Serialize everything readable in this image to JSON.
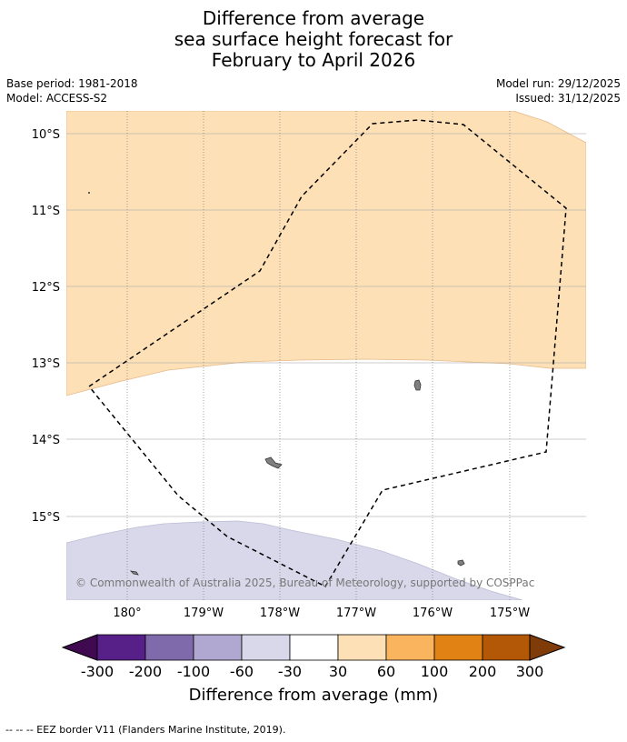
{
  "title": {
    "line1": "Difference from average",
    "line2": "sea surface height forecast for",
    "line3": "February to April 2026"
  },
  "meta": {
    "base_period": "Base period: 1981-2018",
    "model": "Model: ACCESS-S2",
    "model_run": "Model run: 29/12/2025",
    "issued": "Issued: 31/12/2025"
  },
  "map": {
    "lat_ticks": [
      "10°S",
      "11°S",
      "12°S",
      "13°S",
      "14°S",
      "15°S"
    ],
    "lon_ticks": [
      "180°",
      "179°W",
      "178°W",
      "177°W",
      "176°W",
      "175°W"
    ],
    "copyright": "© Commonwealth of Australia 2025, Bureau of Meteorology, supported by COSPPac",
    "colors": {
      "positive_30_60": "#fde0b6",
      "neutral": "#ffffff",
      "negative_60_30": "#d8d8ea",
      "land": "#808080",
      "eez": "#000000"
    }
  },
  "colorbar": {
    "labels": [
      "-300",
      "-200",
      "-100",
      "-60",
      "-30",
      "30",
      "60",
      "100",
      "200",
      "300"
    ],
    "colors": [
      "#3f0a4f",
      "#572088",
      "#7f6aac",
      "#b0a8d0",
      "#d8d8ea",
      "#ffffff",
      "#fde0b6",
      "#fbb45e",
      "#e08214",
      "#b35806",
      "#7f3b08"
    ],
    "title": "Difference from average (mm)"
  },
  "footer": {
    "legend_text": "--  --  -- EEZ border V11 (Flanders Marine Institute, 2019)."
  }
}
